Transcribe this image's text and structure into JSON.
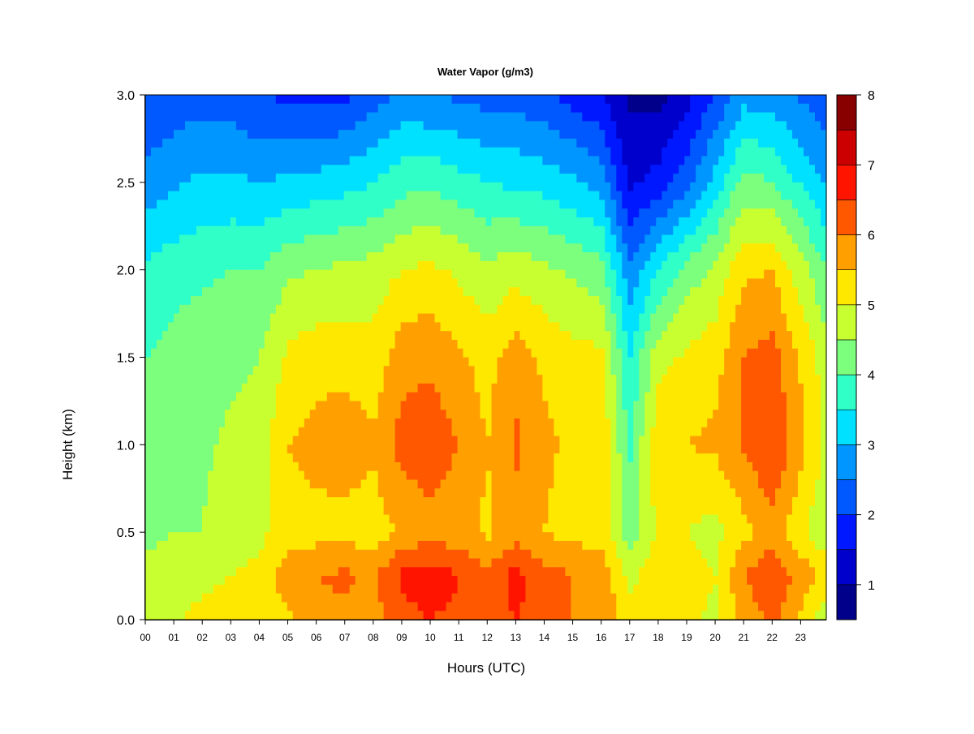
{
  "chart_data": {
    "type": "heatmap",
    "title": "Water Vapor (g/m3)",
    "xlabel": "Hours (UTC)",
    "ylabel": "Height (km)",
    "xlim": [
      0,
      23.9
    ],
    "ylim": [
      0,
      3.0
    ],
    "x_ticks": [
      "00",
      "01",
      "02",
      "03",
      "04",
      "05",
      "06",
      "07",
      "08",
      "09",
      "10",
      "11",
      "12",
      "13",
      "14",
      "15",
      "16",
      "17",
      "18",
      "19",
      "20",
      "21",
      "22",
      "23"
    ],
    "y_ticks": [
      "0.0",
      "0.5",
      "1.0",
      "1.5",
      "2.0",
      "2.5",
      "3.0"
    ],
    "colorbar": {
      "range": [
        0.5,
        8.0
      ],
      "ticks": [
        "1",
        "2",
        "3",
        "4",
        "5",
        "6",
        "7",
        "8"
      ],
      "levels": [
        0.5,
        1.0,
        1.5,
        2.0,
        2.5,
        3.0,
        3.5,
        4.0,
        4.5,
        5.0,
        5.5,
        6.0,
        6.5,
        7.0,
        7.5,
        8.0
      ],
      "colors": [
        "#00008B",
        "#0000CD",
        "#0018FF",
        "#0058FF",
        "#0096FF",
        "#00E0FF",
        "#30FFC8",
        "#7CFF7C",
        "#C8FF30",
        "#FFE800",
        "#FFA000",
        "#FF5800",
        "#FF1400",
        "#CC0000",
        "#880000"
      ]
    },
    "hours": [
      0,
      1,
      2,
      3,
      4,
      5,
      6,
      7,
      8,
      9,
      10,
      11,
      12,
      13,
      14,
      15,
      16,
      17,
      18,
      19,
      20,
      21,
      22,
      23.8
    ],
    "heights_km": [
      0.0,
      0.25,
      0.5,
      1.0,
      1.5,
      2.0,
      2.5,
      3.0
    ],
    "values": [
      [
        4.9,
        4.6,
        4.4,
        4.2,
        4.0,
        3.6,
        2.7,
        2.0
      ],
      [
        4.9,
        4.7,
        4.5,
        4.4,
        4.2,
        3.8,
        2.9,
        2.2
      ],
      [
        5.2,
        4.8,
        4.5,
        4.4,
        4.3,
        3.9,
        3.1,
        2.3
      ],
      [
        5.3,
        5.0,
        4.8,
        4.6,
        4.4,
        4.0,
        3.1,
        2.2
      ],
      [
        5.3,
        5.1,
        4.9,
        4.7,
        4.5,
        4.0,
        3.0,
        2.0
      ],
      [
        5.4,
        5.8,
        5.2,
        5.5,
        5.1,
        4.4,
        3.1,
        1.9
      ],
      [
        5.8,
        6.0,
        5.3,
        5.7,
        5.3,
        4.5,
        3.2,
        1.8
      ],
      [
        5.9,
        6.1,
        5.3,
        5.8,
        5.3,
        4.6,
        3.3,
        1.9
      ],
      [
        5.8,
        5.9,
        5.2,
        5.6,
        5.2,
        4.7,
        3.5,
        2.3
      ],
      [
        6.3,
        6.6,
        5.6,
        6.2,
        5.8,
        5.0,
        3.8,
        2.6
      ],
      [
        6.5,
        6.8,
        5.8,
        6.3,
        5.9,
        5.1,
        3.9,
        2.5
      ],
      [
        6.4,
        6.5,
        5.7,
        6.0,
        5.6,
        4.9,
        3.7,
        2.4
      ],
      [
        6.2,
        6.1,
        5.4,
        5.5,
        5.3,
        4.6,
        3.5,
        2.3
      ],
      [
        6.5,
        6.7,
        5.8,
        6.1,
        5.8,
        4.8,
        3.4,
        2.3
      ],
      [
        6.3,
        6.2,
        5.5,
        5.6,
        5.4,
        4.6,
        3.3,
        2.1
      ],
      [
        6.0,
        6.0,
        5.3,
        5.4,
        5.2,
        4.4,
        3.1,
        1.8
      ],
      [
        5.9,
        5.9,
        5.3,
        5.5,
        5.1,
        4.2,
        2.8,
        1.5
      ],
      [
        5.3,
        4.8,
        4.2,
        3.9,
        3.5,
        2.6,
        1.4,
        0.9
      ],
      [
        5.2,
        5.4,
        5.1,
        5.4,
        4.8,
        3.5,
        1.7,
        0.8
      ],
      [
        5.1,
        5.2,
        5.0,
        5.5,
        5.1,
        4.2,
        2.3,
        1.3
      ],
      [
        4.9,
        5.0,
        4.8,
        5.6,
        5.3,
        4.6,
        3.2,
        2.0
      ],
      [
        5.6,
        6.0,
        5.3,
        6.1,
        6.0,
        5.4,
        4.2,
        2.8
      ],
      [
        6.2,
        6.4,
        5.8,
        6.5,
        6.2,
        5.5,
        4.0,
        2.7
      ],
      [
        4.7,
        5.4,
        4.6,
        5.0,
        4.8,
        4.1,
        3.0,
        2.2
      ]
    ]
  }
}
